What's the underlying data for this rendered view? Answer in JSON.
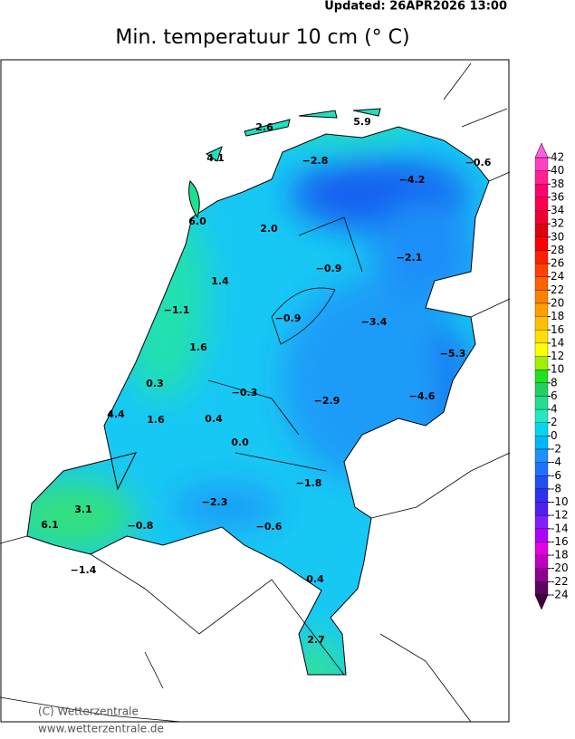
{
  "header": {
    "updated": "Updated:  26APR2026 13:00",
    "title": "Min. temperatuur 10 cm (° C)"
  },
  "stations": [
    "2.6",
    "5.9",
    "4.1",
    "−2.8",
    "−4.2",
    "−0.6",
    "6.0",
    "2.0",
    "−0.9",
    "−2.1",
    "1.4",
    "−1.1",
    "−0.9",
    "−3.4",
    "−5.3",
    "1.6",
    "0.3",
    "−0.3",
    "−2.9",
    "−4.6",
    "4.4",
    "1.6",
    "0.4",
    "0.0",
    "−1.8",
    "−2.3",
    "3.1",
    "6.1",
    "−0.8",
    "−0.6",
    "−1.4",
    "0.4",
    "2.7"
  ],
  "colorbar": {
    "levels": [
      42,
      40,
      38,
      36,
      34,
      32,
      30,
      28,
      26,
      24,
      22,
      20,
      18,
      16,
      14,
      12,
      10,
      8,
      6,
      4,
      2,
      0,
      -2,
      -4,
      -6,
      -8,
      -10,
      -12,
      -14,
      -16,
      -18,
      -20,
      -22,
      -24
    ],
    "colors": [
      "#ff40c0",
      "#ff2090",
      "#ff0070",
      "#ff0050",
      "#f00030",
      "#e00010",
      "#ff0000",
      "#ff2000",
      "#ff4000",
      "#ff6000",
      "#ff8000",
      "#ffa000",
      "#ffc000",
      "#ffe000",
      "#ffff00",
      "#a0f000",
      "#20e020",
      "#20d060",
      "#20e090",
      "#20e8c0",
      "#00d8f0",
      "#00b8f8",
      "#1e90ff",
      "#2070ff",
      "#2050f0",
      "#3030f0",
      "#5020f0",
      "#8020ff",
      "#b000ff",
      "#e000e0",
      "#c000c0",
      "#900090",
      "#600060"
    ],
    "over_color": "#ff60e0",
    "under_color": "#400040"
  },
  "footer": {
    "copyright": "(C) Wetterzentrale",
    "url": "www.wetterzentrale.de"
  }
}
